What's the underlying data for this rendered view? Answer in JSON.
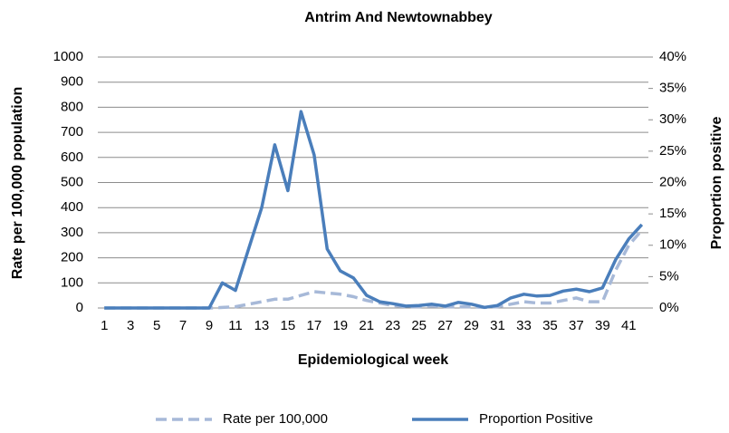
{
  "chart_data": {
    "type": "line",
    "title": "Antrim And Newtownabbey",
    "x_label": "Epidemiological week",
    "y_label": "Rate per 100,000 population",
    "y2_label": "Proportion positive",
    "categories": [
      "1",
      null,
      "3",
      null,
      "5",
      null,
      "7",
      null,
      "9",
      null,
      "11",
      null,
      "13",
      null,
      "15",
      null,
      "17",
      null,
      "19",
      null,
      "21",
      null,
      "23",
      null,
      "25",
      null,
      "27",
      null,
      "29",
      null,
      "31",
      null,
      "33",
      null,
      "35",
      null,
      "37",
      null,
      "39",
      null,
      "41",
      null
    ],
    "ylim": [
      0,
      1000
    ],
    "yticks": [
      0,
      100,
      200,
      300,
      400,
      500,
      600,
      700,
      800,
      900,
      1000
    ],
    "y2lim": [
      0,
      40
    ],
    "y2ticks": [
      {
        "value": 0,
        "label": "0%"
      },
      {
        "value": 5,
        "label": "5%"
      },
      {
        "value": 10,
        "label": "10%"
      },
      {
        "value": 15,
        "label": "15%"
      },
      {
        "value": 20,
        "label": "20%"
      },
      {
        "value": 25,
        "label": "25%"
      },
      {
        "value": 30,
        "label": "30%"
      },
      {
        "value": 35,
        "label": "35%"
      },
      {
        "value": 40,
        "label": "40%"
      }
    ],
    "grid": true,
    "legend": "bottom",
    "series": [
      {
        "name": "Rate per 100,000",
        "color": "#a7b9d8",
        "dashed": true,
        "axis": "y",
        "values": [
          0,
          0,
          0,
          0,
          0,
          0,
          0,
          0,
          0,
          2,
          5,
          15,
          25,
          35,
          35,
          50,
          65,
          60,
          55,
          45,
          30,
          20,
          10,
          5,
          5,
          8,
          5,
          5,
          5,
          2,
          5,
          15,
          25,
          20,
          20,
          30,
          40,
          25,
          25,
          150,
          250,
          310
        ]
      },
      {
        "name": "Proportion Positive",
        "color": "#4a7ebb",
        "dashed": false,
        "axis": "y2",
        "values": [
          0,
          0,
          0,
          0,
          0,
          0,
          0,
          0,
          0,
          4,
          2.8,
          9.4,
          16,
          26,
          18.7,
          31.3,
          24.4,
          9.4,
          5.9,
          4.8,
          2,
          1,
          0.7,
          0.3,
          0.4,
          0.6,
          0.3,
          0.9,
          0.6,
          0.1,
          0.4,
          1.6,
          2.2,
          1.9,
          2,
          2.7,
          3,
          2.6,
          3.2,
          7.7,
          11,
          13.3
        ]
      }
    ]
  }
}
